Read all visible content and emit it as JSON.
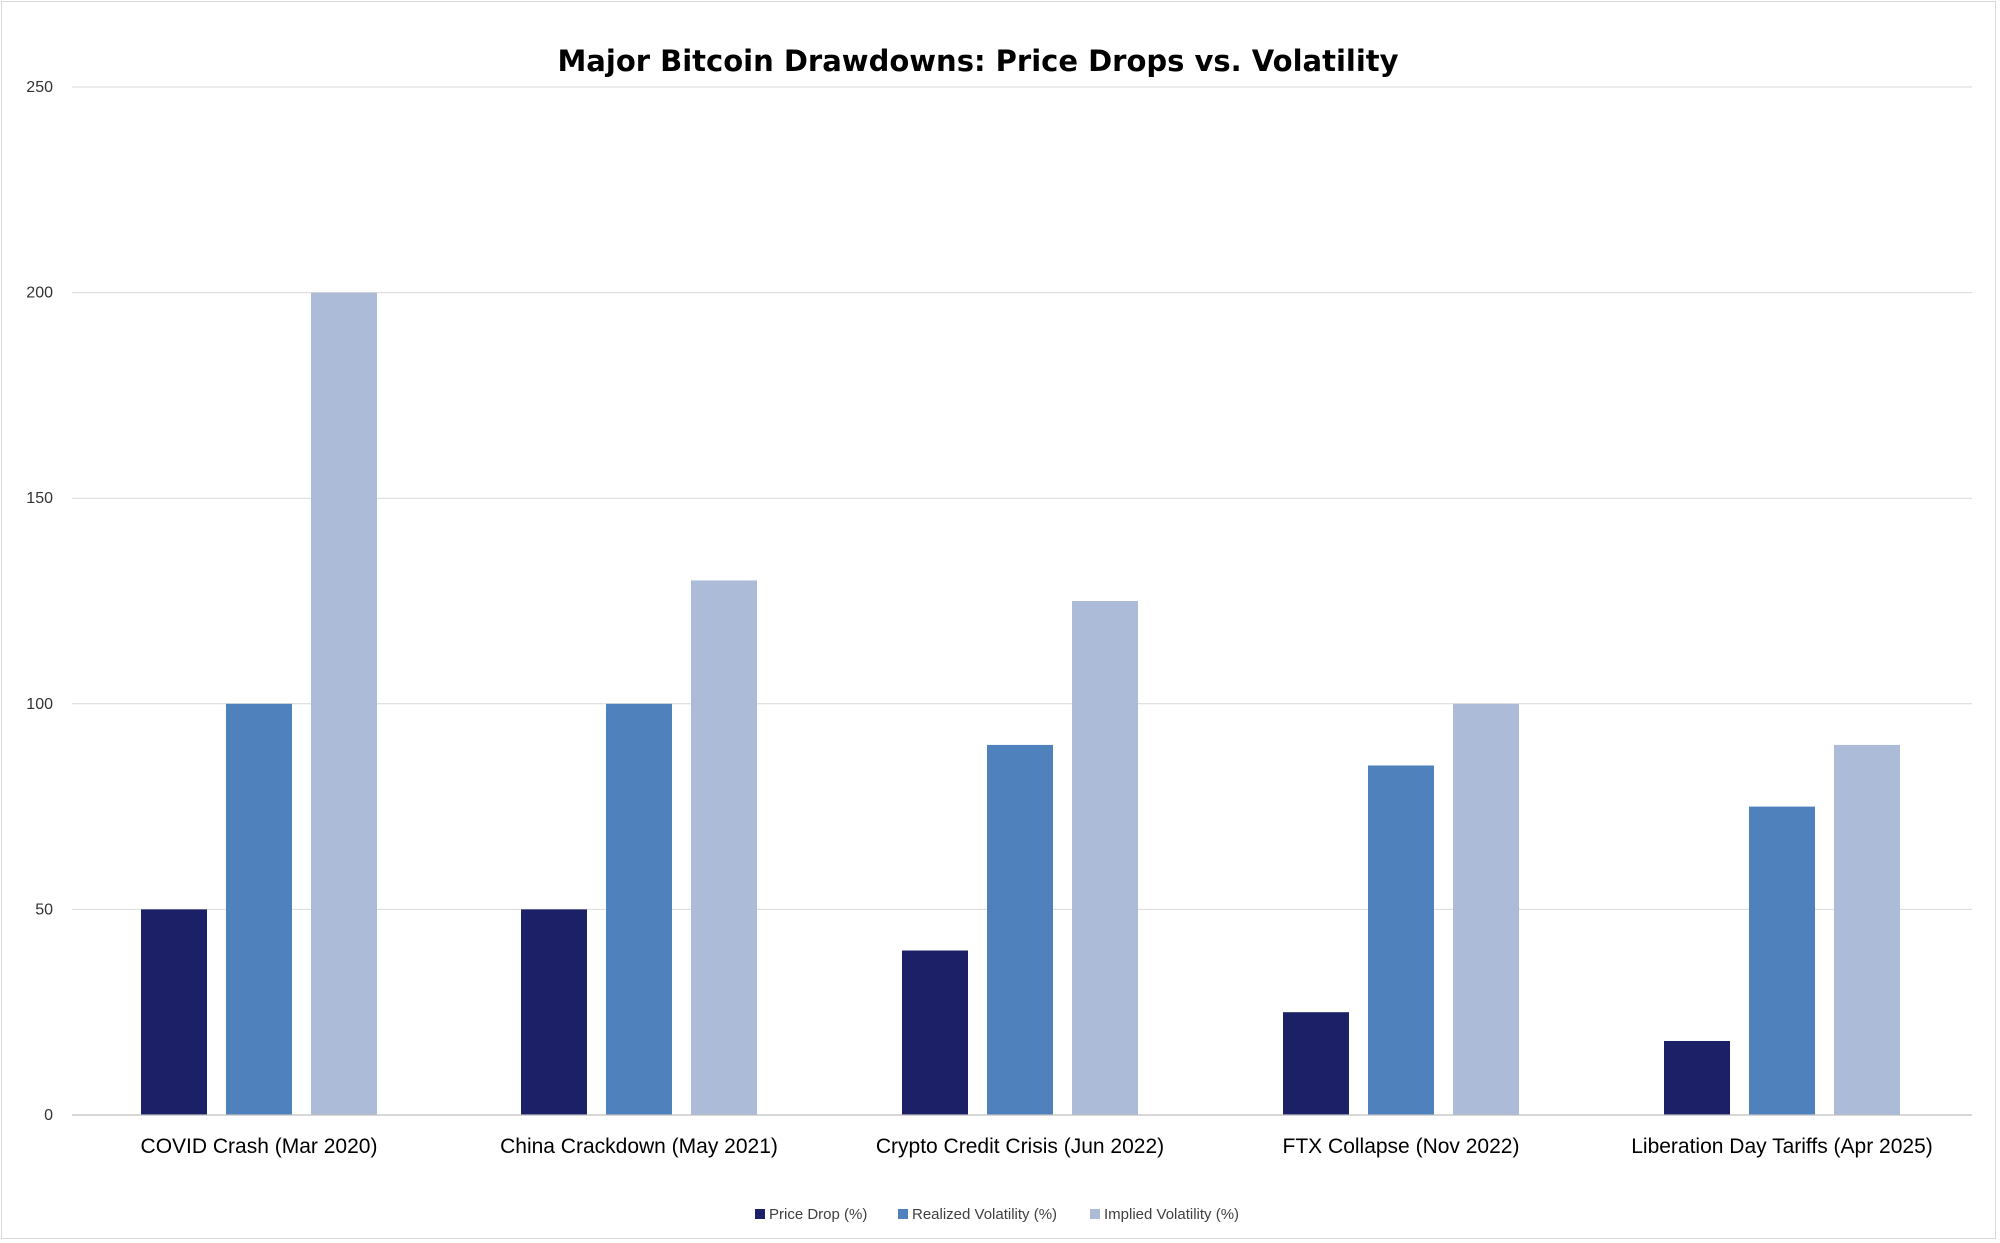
{
  "chart_data": {
    "type": "bar",
    "title": "Major Bitcoin Drawdowns: Price Drops vs. Volatility",
    "xlabel": "",
    "ylabel": "",
    "ylim": [
      0,
      250
    ],
    "yticks": [
      0,
      50,
      100,
      150,
      200,
      250
    ],
    "grid": true,
    "legend_position": "bottom",
    "categories": [
      "COVID Crash (Mar 2020)",
      "China Crackdown (May 2021)",
      "Crypto Credit Crisis (Jun 2022)",
      "FTX Collapse (Nov 2022)",
      "Liberation Day Tariffs (Apr 2025)"
    ],
    "series": [
      {
        "name": "Price Drop (%)",
        "color": "#1b2067",
        "values": [
          50,
          50,
          40,
          25,
          18
        ]
      },
      {
        "name": "Realized Volatility (%)",
        "color": "#4f81bd",
        "values": [
          100,
          100,
          90,
          85,
          75
        ]
      },
      {
        "name": "Implied Volatility (%)",
        "color": "#abbbd8",
        "values": [
          200,
          130,
          125,
          100,
          90
        ]
      }
    ]
  }
}
